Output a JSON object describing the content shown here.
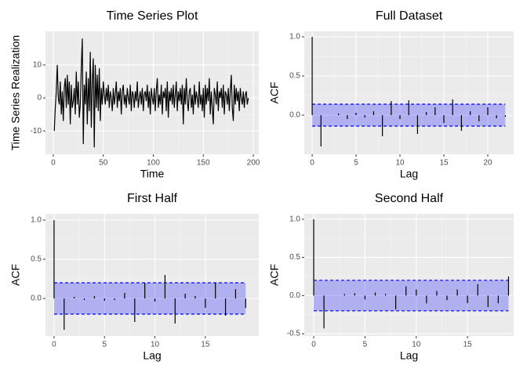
{
  "chart_data": [
    {
      "type": "line",
      "title": "Time Series Plot",
      "x_label": "Time",
      "y_label": "Time Series Realization",
      "color": "#000000",
      "x": [
        1,
        2,
        3,
        4,
        5,
        6,
        7,
        8,
        9,
        10,
        11,
        12,
        13,
        14,
        15,
        16,
        17,
        18,
        19,
        20,
        21,
        22,
        23,
        24,
        25,
        26,
        27,
        28,
        29,
        30,
        31,
        32,
        33,
        34,
        35,
        36,
        37,
        38,
        39,
        40,
        41,
        42,
        43,
        44,
        45,
        46,
        47,
        48,
        49,
        50,
        51,
        52,
        53,
        54,
        55,
        56,
        57,
        58,
        59,
        60,
        61,
        62,
        63,
        64,
        65,
        66,
        67,
        68,
        69,
        70,
        71,
        72,
        73,
        74,
        75,
        76,
        77,
        78,
        79,
        80,
        81,
        82,
        83,
        84,
        85,
        86,
        87,
        88,
        89,
        90,
        91,
        92,
        93,
        94,
        95,
        96,
        97,
        98,
        99,
        100,
        101,
        102,
        103,
        104,
        105,
        106,
        107,
        108,
        109,
        110,
        111,
        112,
        113,
        114,
        115,
        116,
        117,
        118,
        119,
        120,
        121,
        122,
        123,
        124,
        125,
        126,
        127,
        128,
        129,
        130,
        131,
        132,
        133,
        134,
        135,
        136,
        137,
        138,
        139,
        140,
        141,
        142,
        143,
        144,
        145,
        146,
        147,
        148,
        149,
        150,
        151,
        152,
        153,
        154,
        155,
        156,
        157,
        158,
        159,
        160,
        161,
        162,
        163,
        164,
        165,
        166,
        167,
        168,
        169,
        170,
        171,
        172,
        173,
        174,
        175,
        176,
        177,
        178,
        179,
        180,
        181,
        182,
        183,
        184,
        185,
        186,
        187,
        188,
        189,
        190,
        191,
        192,
        193,
        194,
        195
      ],
      "values": [
        -10,
        -3,
        2,
        10,
        0,
        -2,
        5,
        -5,
        2,
        -7,
        3,
        6,
        -3,
        7,
        -2,
        5,
        -8,
        4,
        -3,
        -1,
        3,
        -5,
        8,
        -2,
        5,
        -6,
        -2,
        9,
        18,
        -14,
        4,
        -2,
        8,
        -8,
        6,
        -4,
        14,
        -9,
        5,
        12,
        -15,
        10,
        -3,
        7,
        -4,
        9,
        -7,
        3,
        -2,
        5,
        1,
        -2,
        3,
        -1,
        4,
        -3,
        2,
        0,
        -4,
        3,
        -2,
        1,
        5,
        -3,
        2,
        -1,
        3,
        -5,
        2,
        4,
        -2,
        1,
        -3,
        3,
        0,
        -2,
        4,
        -4,
        2,
        1,
        -3,
        2,
        -1,
        5,
        -3,
        0,
        2,
        -2,
        3,
        -4,
        1,
        2,
        -1,
        4,
        -3,
        2,
        -5,
        3,
        0,
        -2,
        3,
        -4,
        2,
        6,
        -3,
        1,
        -2,
        4,
        -5,
        2,
        0,
        3,
        -4,
        5,
        -6,
        2,
        -1,
        3,
        -2,
        4,
        -3,
        1,
        5,
        -4,
        2,
        -1,
        3,
        -2,
        4,
        -8,
        3,
        -2,
        6,
        -1,
        -4,
        2,
        3,
        -3,
        1,
        -5,
        4,
        -2,
        2,
        0,
        -3,
        5,
        -2,
        1,
        -4,
        3,
        -6,
        4,
        -2,
        3,
        -1,
        6,
        -5,
        2,
        -3,
        -8,
        3,
        1,
        -2,
        5,
        -4,
        2,
        0,
        3,
        -3,
        4,
        -5,
        2,
        1,
        -2,
        3,
        -4,
        2,
        7,
        -3,
        -7,
        4,
        -2,
        3,
        -1,
        2,
        -4,
        3,
        0,
        -2,
        2,
        -3,
        1,
        2,
        -2,
        0
      ],
      "xlim": [
        -7.8,
        205.5
      ],
      "ylim": [
        -17.1,
        20.2
      ],
      "xticks": [
        0,
        50,
        100,
        150,
        200
      ],
      "yticks": [
        -10,
        0,
        10
      ],
      "grid": true
    },
    {
      "type": "acf",
      "title": "Full Dataset",
      "x_label": "Lag",
      "y_label": "ACF",
      "color": "#000000",
      "band_color": "#0000ff",
      "ci": 0.14,
      "x": [
        0,
        1,
        2,
        3,
        4,
        5,
        6,
        7,
        8,
        9,
        10,
        11,
        12,
        13,
        14,
        15,
        16,
        17,
        18,
        19,
        20,
        21,
        22
      ],
      "values": [
        1,
        -0.4,
        0.0,
        0.02,
        -0.05,
        0.03,
        -0.03,
        0.05,
        -0.27,
        0.18,
        -0.05,
        0.19,
        -0.24,
        0.04,
        0.1,
        -0.1,
        0.2,
        -0.2,
        0.05,
        -0.08,
        0.1,
        -0.04,
        -0.02
      ],
      "xlim": [
        -0.9,
        22.95
      ],
      "ylim": [
        -0.5,
        1.07
      ],
      "xticks": [
        0,
        5,
        10,
        15,
        20
      ],
      "yticks": [
        {
          "value": 0,
          "label": "0.0"
        },
        {
          "value": 0.5,
          "label": "0.5"
        },
        {
          "value": 1,
          "label": "1.0"
        }
      ],
      "grid": true
    },
    {
      "type": "acf",
      "title": "First Half",
      "x_label": "Lag",
      "y_label": "ACF",
      "color": "#000000",
      "band_color": "#0000ff",
      "ci": 0.2,
      "x": [
        0,
        1,
        2,
        3,
        4,
        5,
        6,
        7,
        8,
        9,
        10,
        11,
        12,
        13,
        14,
        15,
        16,
        17,
        18,
        19
      ],
      "values": [
        1,
        -0.4,
        0.02,
        -0.02,
        0.03,
        -0.03,
        -0.02,
        0.07,
        -0.3,
        0.2,
        -0.04,
        0.3,
        -0.32,
        0.06,
        0.03,
        -0.12,
        0.2,
        -0.22,
        0.12,
        -0.12
      ],
      "xlim": [
        -0.85,
        20.3
      ],
      "ylim": [
        -0.48,
        1.08
      ],
      "xticks": [
        0,
        5,
        10,
        15
      ],
      "yticks": [
        {
          "value": 0,
          "label": "0.0"
        },
        {
          "value": 0.5,
          "label": "0.5"
        },
        {
          "value": 1,
          "label": "1.0"
        }
      ],
      "grid": true
    },
    {
      "type": "acf",
      "title": "Second Half",
      "x_label": "Lag",
      "y_label": "ACF",
      "color": "#000000",
      "band_color": "#0000ff",
      "ci": 0.2,
      "x": [
        0,
        1,
        2,
        3,
        4,
        5,
        6,
        7,
        8,
        9,
        10,
        11,
        12,
        13,
        14,
        15,
        16,
        17,
        18,
        19
      ],
      "values": [
        1,
        -0.43,
        0.0,
        0.02,
        0.03,
        -0.05,
        0.04,
        0.02,
        -0.18,
        0.12,
        0.08,
        -0.1,
        0.06,
        -0.06,
        0.08,
        -0.1,
        0.15,
        -0.15,
        -0.1,
        0.25
      ],
      "xlim": [
        -0.92,
        19.5
      ],
      "ylim": [
        -0.53,
        1.07
      ],
      "xticks": [
        0,
        5,
        10,
        15
      ],
      "yticks": [
        {
          "value": -0.5,
          "label": "-0.5"
        },
        {
          "value": 0,
          "label": "0.0"
        },
        {
          "value": 0.5,
          "label": "0.5"
        },
        {
          "value": 1,
          "label": "1.0"
        }
      ],
      "grid": true
    }
  ]
}
